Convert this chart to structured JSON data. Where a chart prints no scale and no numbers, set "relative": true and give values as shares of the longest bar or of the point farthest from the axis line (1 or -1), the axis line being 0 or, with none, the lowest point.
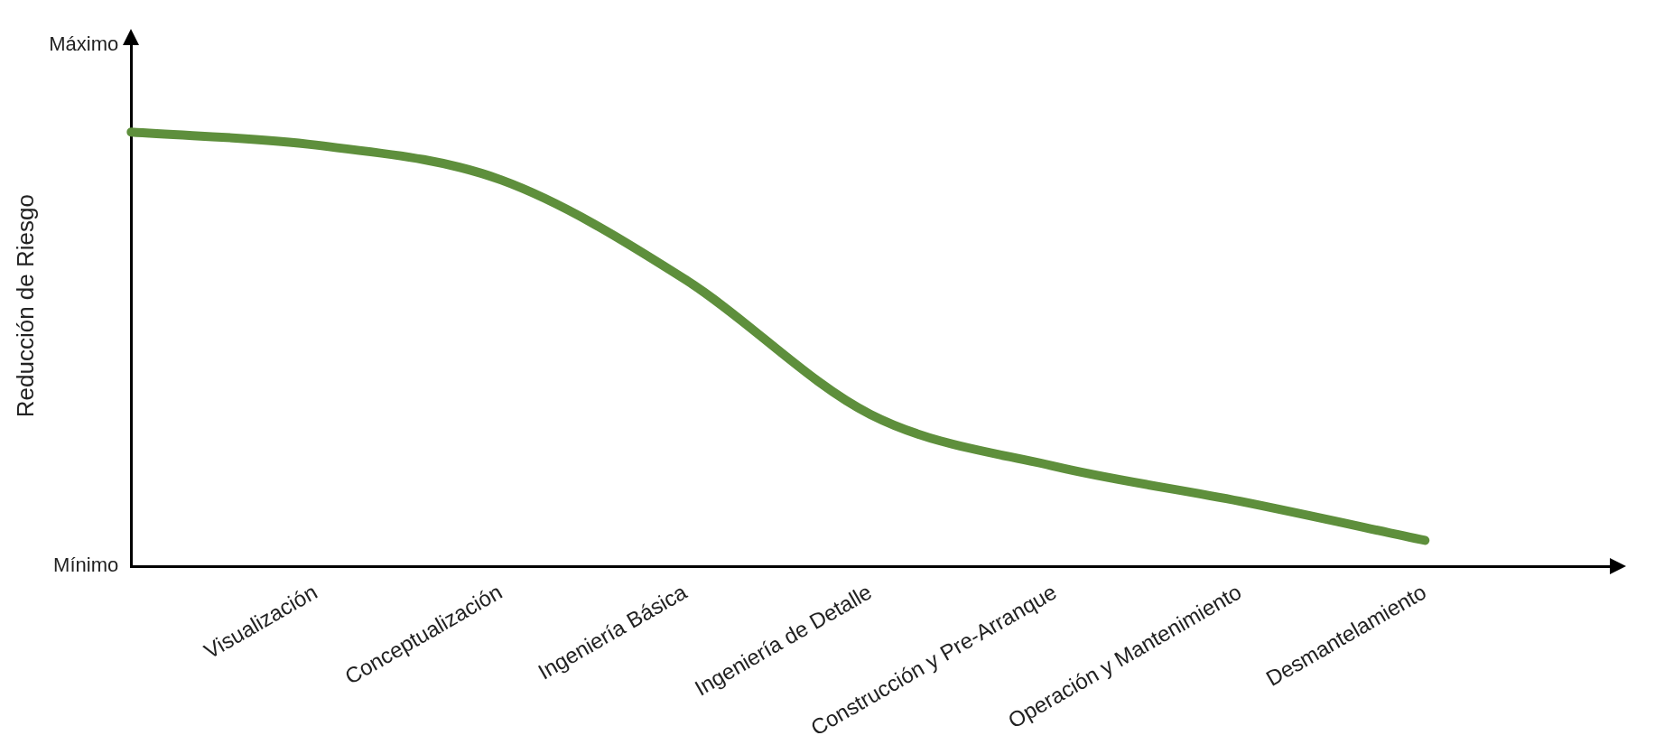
{
  "chart_data": {
    "type": "line",
    "ylabel": "Reducción de Riesgo",
    "relative": true,
    "categories": [
      null,
      "Visualización",
      "Conceptualización",
      "Ingeniería Básica",
      "Ingeniería de Detalle",
      "Construcción y Pre-Arranque",
      "Operación y Mantenimiento",
      "Desmantelamiento",
      null
    ],
    "series": [
      {
        "color": "#5e8f3c",
        "values": [
          1,
          0.97,
          0.89,
          0.66,
          0.35,
          0.23,
          0.15,
          0.06,
          null
        ]
      }
    ],
    "annotations": [
      "Máximo",
      "Mínimo"
    ],
    "grid": false,
    "legend": false,
    "marker": "none",
    "line_style": "solid"
  }
}
